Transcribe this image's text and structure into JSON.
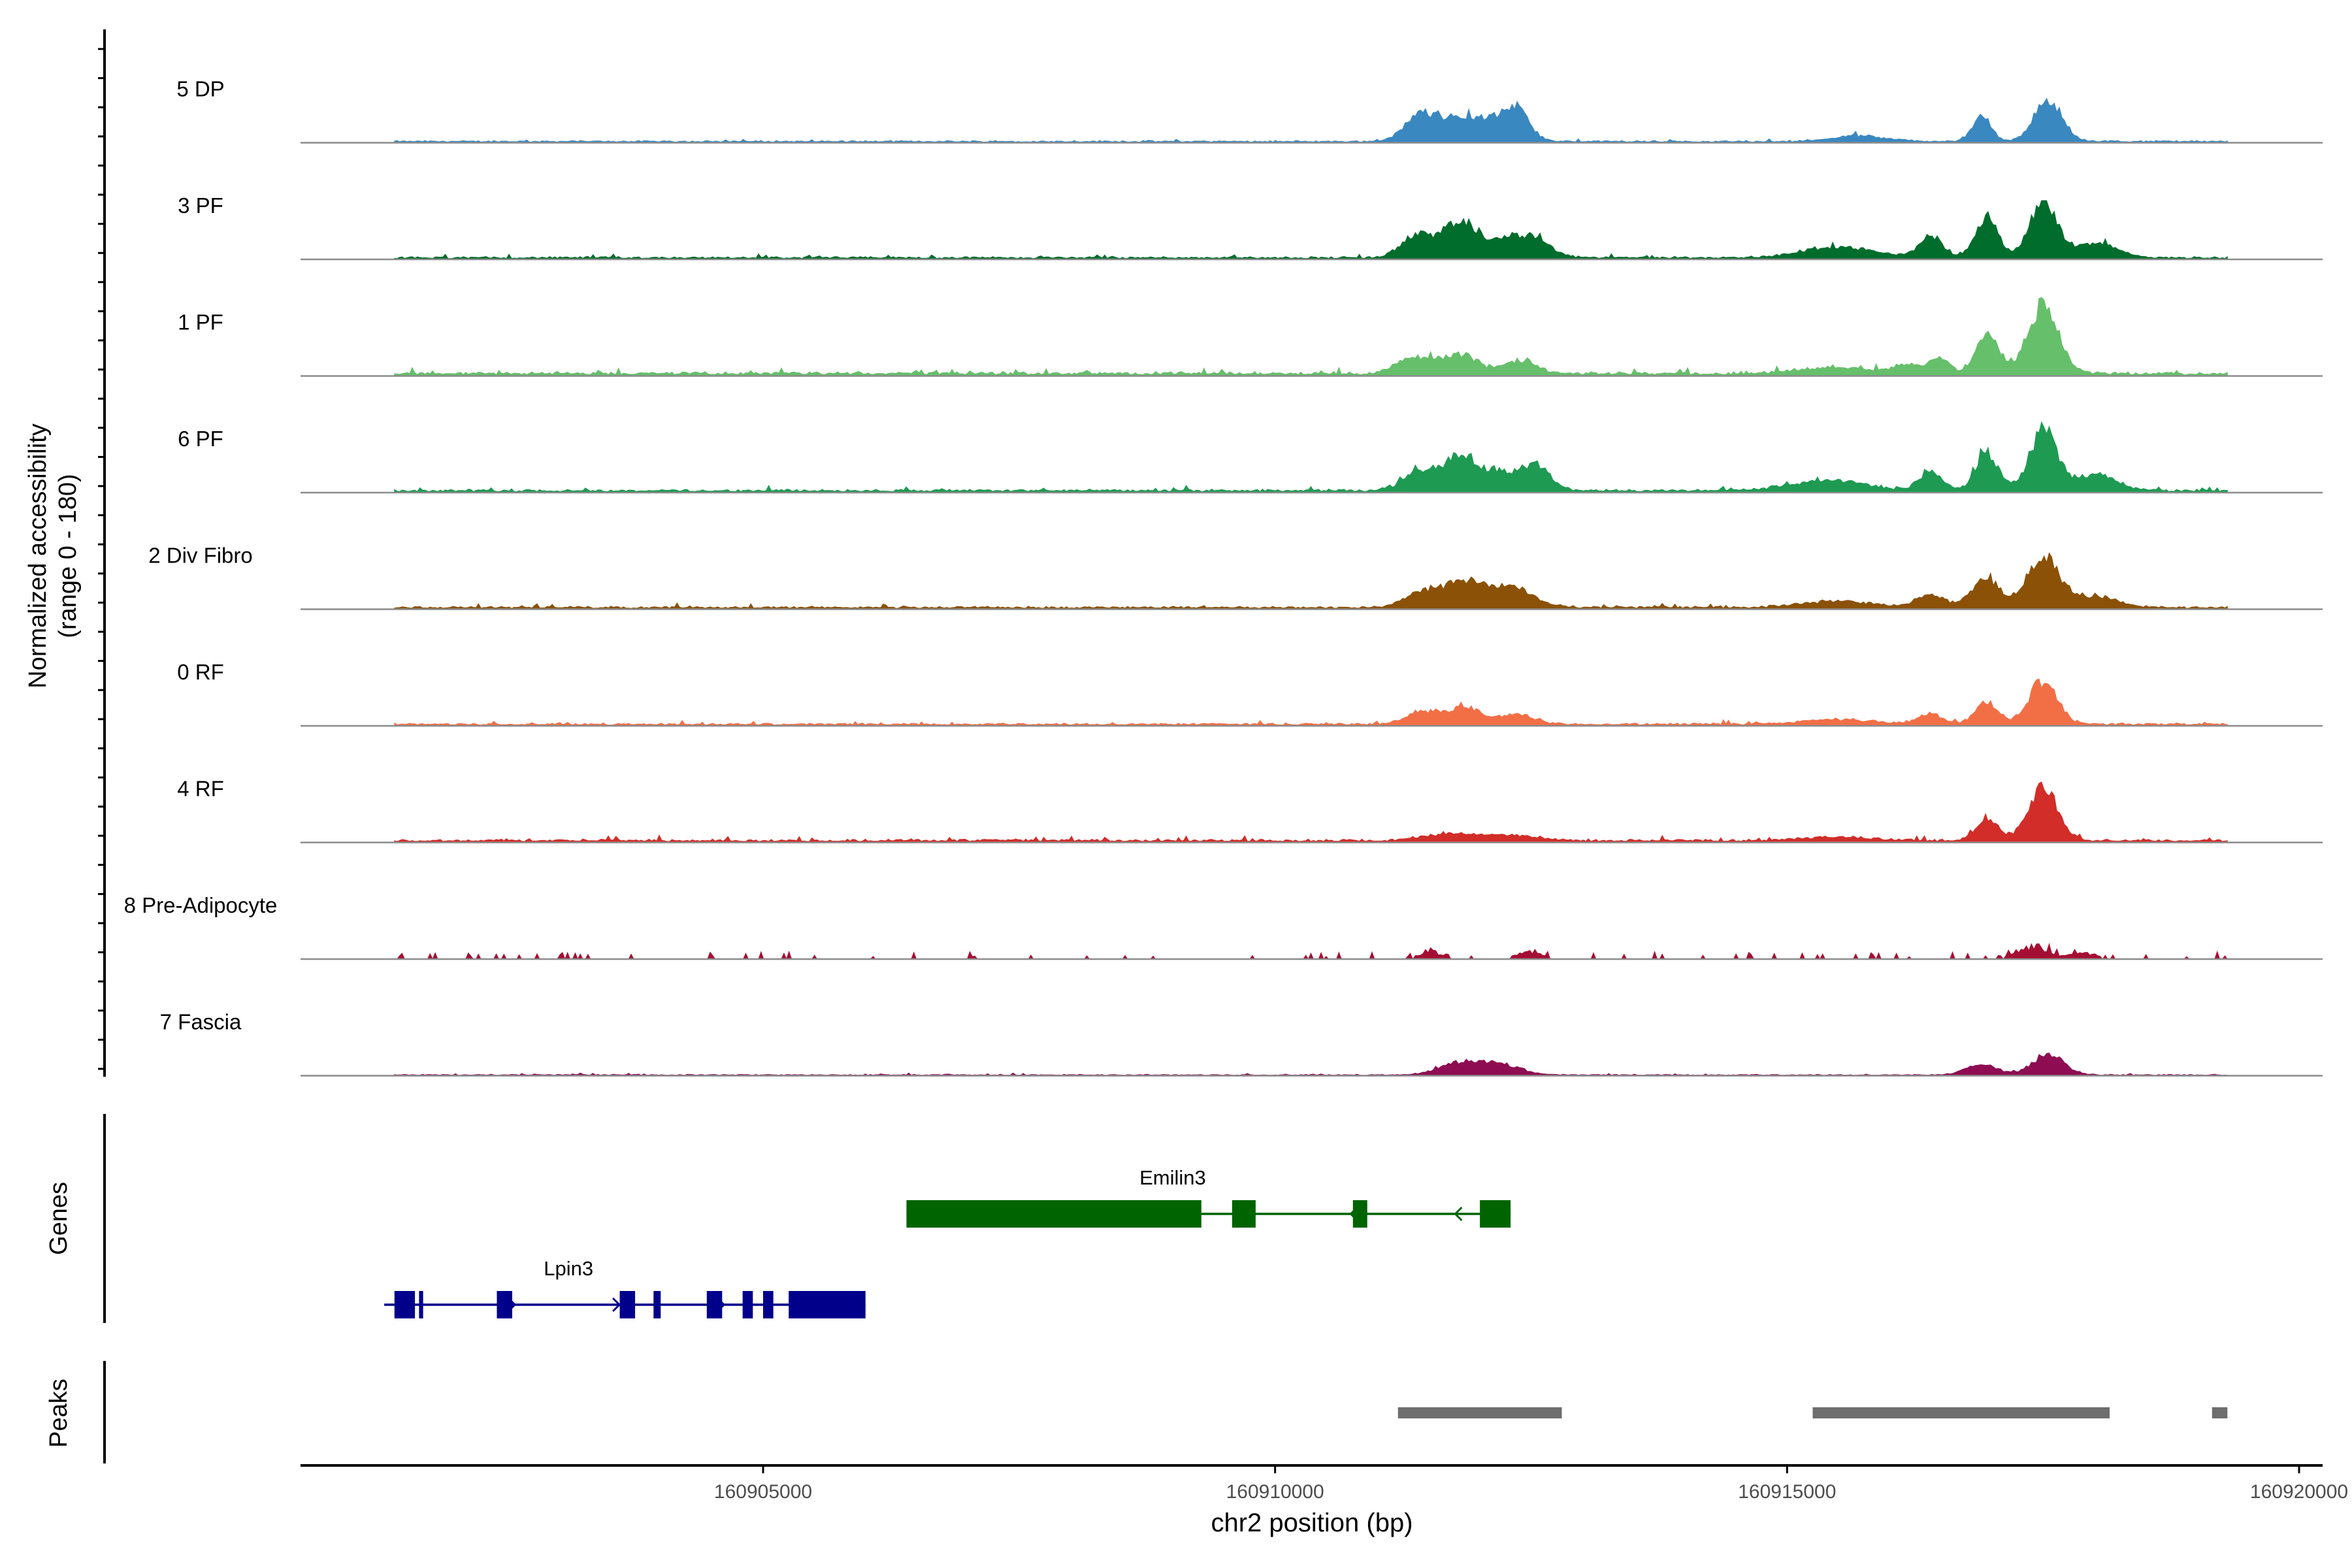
{
  "chart_data": {
    "type": "area",
    "chromosome": "chr2",
    "xlabel": "chr2 position (bp)",
    "xlim": [
      160900500,
      160920200
    ],
    "xticks": [
      160905000,
      160910000,
      160915000,
      160920000
    ],
    "xtick_labels": [
      "160905000",
      "160910000",
      "160915000",
      "160920000"
    ],
    "ylabel_lines": [
      "Normalized accessibility",
      "(range 0 - 180)"
    ],
    "ylim": [
      0,
      180
    ],
    "track_range": [
      160901400,
      160919300
    ],
    "coverage_tracks": [
      {
        "name": "5 DP",
        "color": "#3A88C0",
        "scale": 0.48,
        "peaks": [
          [
            160911400,
            0.45,
            150
          ],
          [
            160911700,
            0.4,
            200
          ],
          [
            160912050,
            0.38,
            200
          ],
          [
            160912350,
            0.62,
            130
          ],
          [
            160916900,
            0.55,
            90
          ],
          [
            160917550,
            0.85,
            140
          ],
          [
            160915700,
            0.13,
            250
          ]
        ]
      },
      {
        "name": "3 PF",
        "color": "#006D2C",
        "scale": 0.6,
        "peaks": [
          [
            160911400,
            0.4,
            160
          ],
          [
            160911800,
            0.52,
            150
          ],
          [
            160912150,
            0.25,
            220
          ],
          [
            160912500,
            0.3,
            180
          ],
          [
            160915500,
            0.18,
            350
          ],
          [
            160916400,
            0.38,
            110
          ],
          [
            160916950,
            0.72,
            110
          ],
          [
            160917500,
            0.92,
            130
          ],
          [
            160918000,
            0.25,
            220
          ]
        ]
      },
      {
        "name": "1 PF",
        "color": "#66BF6A",
        "scale": 0.9,
        "peaks": [
          [
            160911350,
            0.18,
            160
          ],
          [
            160911800,
            0.22,
            180
          ],
          [
            160912400,
            0.15,
            150
          ],
          [
            160915400,
            0.07,
            350
          ],
          [
            160916200,
            0.1,
            150
          ],
          [
            160916500,
            0.17,
            90
          ],
          [
            160916950,
            0.46,
            110
          ],
          [
            160917500,
            0.76,
            150
          ]
        ]
      },
      {
        "name": "6 PF",
        "color": "#1E9A52",
        "scale": 0.72,
        "peaks": [
          [
            160911400,
            0.28,
            150
          ],
          [
            160911800,
            0.44,
            170
          ],
          [
            160912200,
            0.25,
            200
          ],
          [
            160912550,
            0.3,
            140
          ],
          [
            160915400,
            0.15,
            350
          ],
          [
            160916400,
            0.28,
            110
          ],
          [
            160916950,
            0.55,
            110
          ],
          [
            160917500,
            0.85,
            130
          ],
          [
            160918000,
            0.22,
            220
          ]
        ]
      },
      {
        "name": "2 Div Fibro",
        "color": "#8B5107",
        "scale": 0.64,
        "peaks": [
          [
            160911450,
            0.25,
            180
          ],
          [
            160911850,
            0.38,
            180
          ],
          [
            160912300,
            0.32,
            220
          ],
          [
            160915500,
            0.1,
            350
          ],
          [
            160916400,
            0.22,
            130
          ],
          [
            160916950,
            0.45,
            140
          ],
          [
            160917500,
            0.8,
            150
          ],
          [
            160918000,
            0.18,
            220
          ]
        ]
      },
      {
        "name": "0 RF",
        "color": "#F26F46",
        "scale": 0.6,
        "peaks": [
          [
            160911450,
            0.22,
            160
          ],
          [
            160911850,
            0.3,
            150
          ],
          [
            160912350,
            0.18,
            160
          ],
          [
            160915500,
            0.08,
            350
          ],
          [
            160916400,
            0.18,
            110
          ],
          [
            160916950,
            0.38,
            110
          ],
          [
            160917500,
            0.72,
            140
          ]
        ]
      },
      {
        "name": "4 RF",
        "color": "#D22D28",
        "scale": 0.7,
        "peaks": [
          [
            160911700,
            0.1,
            250
          ],
          [
            160912300,
            0.08,
            250
          ],
          [
            160915500,
            0.05,
            350
          ],
          [
            160916950,
            0.32,
            110
          ],
          [
            160917500,
            0.78,
            140
          ]
        ]
      },
      {
        "name": "8 Pre-Adipocyte",
        "color": "#A50E33",
        "scale": 0.3,
        "peaks": [
          [
            160911500,
            0.4,
            80
          ],
          [
            160912500,
            0.3,
            120
          ],
          [
            160917400,
            0.5,
            160
          ],
          [
            160917900,
            0.25,
            120
          ]
        ]
      },
      {
        "name": "7 Fascia",
        "color": "#8E0D52",
        "scale": 0.3,
        "peaks": [
          [
            160911800,
            0.4,
            200
          ],
          [
            160912200,
            0.35,
            200
          ],
          [
            160916900,
            0.35,
            150
          ],
          [
            160917550,
            0.7,
            150
          ]
        ]
      }
    ],
    "genes_label": "Genes",
    "genes": [
      {
        "name": "Emilin3",
        "color": "#006400",
        "strand": "-",
        "start": 160906400,
        "end": 160912300,
        "row": 0,
        "exons": [
          [
            160906400,
            160909280
          ],
          [
            160909580,
            160909810
          ],
          [
            160910760,
            160910900
          ],
          [
            160912000,
            160912300
          ]
        ]
      },
      {
        "name": "Lpin3",
        "color": "#00008B",
        "strand": "+",
        "start": 160901300,
        "end": 160906000,
        "row": 1,
        "exons": [
          [
            160901400,
            160901600
          ],
          [
            160901640,
            160901680
          ],
          [
            160902400,
            160902550
          ],
          [
            160903600,
            160903750
          ],
          [
            160903930,
            160904000
          ],
          [
            160904450,
            160904600
          ],
          [
            160904800,
            160904900
          ],
          [
            160905000,
            160905100
          ],
          [
            160905250,
            160906000
          ]
        ]
      }
    ],
    "peaks_label": "Peaks",
    "peak_regions": [
      [
        160911200,
        160912800
      ],
      [
        160915250,
        160918150
      ],
      [
        160919150,
        160919300
      ]
    ]
  }
}
